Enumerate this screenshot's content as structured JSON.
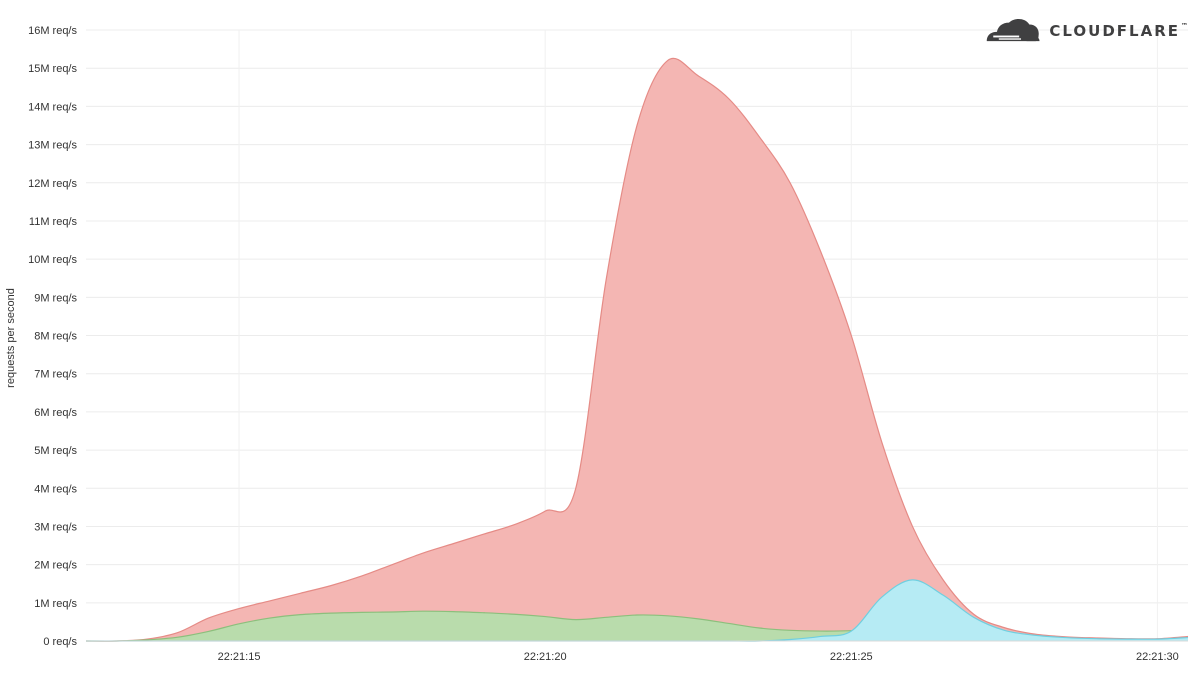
{
  "brand": {
    "logo_text": "CLOUDFLARE",
    "trademark": "™",
    "logo_icon": "cloud-icon",
    "logo_color": "#404041"
  },
  "chart_data": {
    "type": "area",
    "title": "",
    "xlabel": "",
    "ylabel": "requests per second",
    "ylim": [
      0,
      16000000
    ],
    "xlim": [
      12.5,
      30.5
    ],
    "x_ticks": [
      15,
      20,
      25,
      30
    ],
    "x_tick_labels": [
      "22:21:15",
      "22:21:20",
      "22:21:25",
      "22:21:30"
    ],
    "y_ticks": [
      0,
      1000000,
      2000000,
      3000000,
      4000000,
      5000000,
      6000000,
      7000000,
      8000000,
      9000000,
      10000000,
      11000000,
      12000000,
      13000000,
      14000000,
      15000000,
      16000000
    ],
    "y_tick_labels": [
      "0 req/s",
      "1M req/s",
      "2M req/s",
      "3M req/s",
      "4M req/s",
      "5M req/s",
      "6M req/s",
      "7M req/s",
      "8M req/s",
      "9M req/s",
      "10M req/s",
      "11M req/s",
      "12M req/s",
      "13M req/s",
      "14M req/s",
      "15M req/s",
      "16M req/s"
    ],
    "grid": true,
    "legend": "none",
    "x": [
      12.5,
      13,
      13.5,
      14,
      14.5,
      15,
      15.5,
      16,
      16.5,
      17,
      17.5,
      18,
      18.5,
      19,
      19.5,
      20,
      20.5,
      21,
      21.5,
      22,
      22.5,
      23,
      23.5,
      24,
      24.5,
      25,
      25.5,
      26,
      26.5,
      27,
      27.5,
      28,
      28.5,
      29,
      29.5,
      30,
      30.5
    ],
    "series": [
      {
        "color": "#f4b6b3",
        "stroke": "#e58b86",
        "values": [
          0,
          0,
          50000,
          220000,
          600000,
          850000,
          1050000,
          1250000,
          1450000,
          1700000,
          2000000,
          2300000,
          2550000,
          2800000,
          3050000,
          3400000,
          4000000,
          9500000,
          13500000,
          15200000,
          14800000,
          14200000,
          13200000,
          12000000,
          10200000,
          8000000,
          5200000,
          3000000,
          1600000,
          700000,
          350000,
          180000,
          110000,
          80000,
          60000,
          60000,
          120000
        ]
      },
      {
        "color": "#b9dcac",
        "stroke": "#8cbf7c",
        "values": [
          0,
          0,
          30000,
          100000,
          250000,
          450000,
          600000,
          690000,
          730000,
          750000,
          760000,
          780000,
          770000,
          740000,
          700000,
          640000,
          560000,
          620000,
          680000,
          660000,
          580000,
          460000,
          340000,
          280000,
          260000,
          270000,
          320000,
          300000,
          170000,
          80000,
          40000,
          30000,
          30000,
          30000,
          30000,
          40000,
          70000
        ]
      },
      {
        "color": "#b6ebf4",
        "stroke": "#6fcfe0",
        "values": [
          0,
          0,
          0,
          0,
          0,
          0,
          0,
          0,
          0,
          0,
          0,
          0,
          0,
          0,
          0,
          0,
          0,
          0,
          0,
          0,
          0,
          0,
          0,
          40000,
          120000,
          260000,
          1150000,
          1600000,
          1200000,
          620000,
          280000,
          150000,
          90000,
          60000,
          50000,
          50000,
          90000
        ]
      }
    ]
  }
}
